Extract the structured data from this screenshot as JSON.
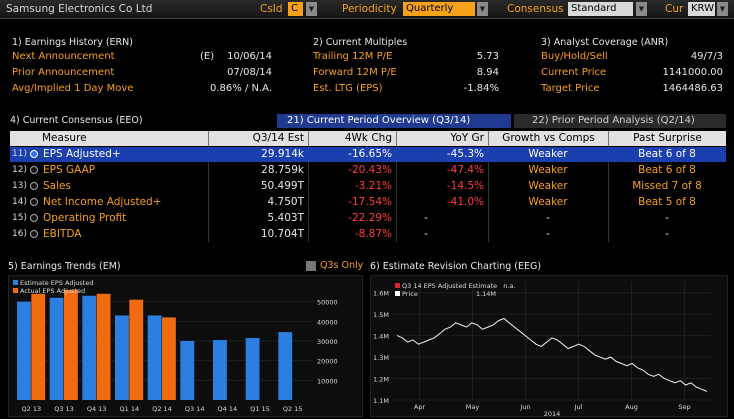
{
  "titlebar": {
    "company": "Samsung Electronics Co Ltd",
    "csid_label": "CsId",
    "csid_value": "C",
    "periodicity_label": "Periodicity",
    "periodicity_value": "Quarterly",
    "consensus_label": "Consensus",
    "consensus_value": "Standard",
    "cur_label": "Cur",
    "cur_value": "KRW"
  },
  "earnings_history": {
    "title": "1) Earnings History (ERN)",
    "rows": [
      {
        "label": "Next Announcement",
        "prefix": "(E)",
        "value": "10/06/14"
      },
      {
        "label": "Prior Announcement",
        "prefix": "",
        "value": "07/08/14"
      },
      {
        "label": "Avg/Implied 1 Day Move",
        "prefix": "",
        "value": "0.86% / N.A."
      }
    ]
  },
  "current_multiples": {
    "title": "2) Current Multiples",
    "rows": [
      {
        "label": "Trailing 12M P/E",
        "value": "5.73"
      },
      {
        "label": "Forward 12M P/E",
        "value": "8.94"
      },
      {
        "label": "Est. LTG (EPS)",
        "value": "-1.84%"
      }
    ]
  },
  "analyst_coverage": {
    "title": "3) Analyst Coverage (ANR)",
    "rows": [
      {
        "label": "Buy/Hold/Sell",
        "value": "49/7/3"
      },
      {
        "label": "Current Price",
        "value": "1141000.00"
      },
      {
        "label": "Target Price",
        "value": "1464486.63"
      }
    ]
  },
  "consensus": {
    "title": "4) Current Consensus (EEO)",
    "tab_active": "21) Current Period Overview (Q3/14)",
    "tab_inactive": "22) Prior Period Analysis (Q2/14)",
    "headers": [
      "Measure",
      "Q3/14 Est",
      "4Wk Chg",
      "YoY Gr",
      "Growth vs Comps",
      "Past Surprise"
    ],
    "rows": [
      {
        "num": "11)",
        "measure": "EPS Adjusted+",
        "est": "29.914k",
        "chg": "-16.65%",
        "yoy": "-45.3%",
        "growth": "Weaker",
        "surprise": "Beat 6 of 8"
      },
      {
        "num": "12)",
        "measure": "EPS GAAP",
        "est": "28.759k",
        "chg": "-20.43%",
        "yoy": "-47.4%",
        "growth": "Weaker",
        "surprise": "Beat 6 of 8"
      },
      {
        "num": "13)",
        "measure": "Sales",
        "est": "50.499T",
        "chg": "-3.21%",
        "yoy": "-14.5%",
        "growth": "Weaker",
        "surprise": "Missed 7 of 8"
      },
      {
        "num": "14)",
        "measure": "Net Income Adjusted+",
        "est": "4.750T",
        "chg": "-17.54%",
        "yoy": "-41.0%",
        "growth": "Weaker",
        "surprise": "Beat 5 of 8"
      },
      {
        "num": "15)",
        "measure": "Operating Profit",
        "est": "5.403T",
        "chg": "-22.29%",
        "yoy": "-",
        "growth": "-",
        "surprise": "-"
      },
      {
        "num": "16)",
        "measure": "EBITDA",
        "est": "10.704T",
        "chg": "-8.87%",
        "yoy": "-",
        "growth": "-",
        "surprise": "-"
      }
    ]
  },
  "trends": {
    "title": "5) Earnings Trends (EM)",
    "q3s_label": "Q3s Only",
    "legend": [
      "Estimate EPS Adjusted",
      "Actual EPS Adjusted"
    ],
    "colors": {
      "estimate": "#2b7fe0",
      "actual": "#f06a10"
    }
  },
  "revision": {
    "title": "6) Estimate Revision Charting (EEG)",
    "legend_est": "Q3 14 EPS Adjusted Estimate",
    "legend_est_val": "n.a.",
    "legend_price": "Price",
    "legend_price_val": "1.14M"
  },
  "chart_data": [
    {
      "type": "bar",
      "categories": [
        "Q2 13",
        "Q3 13",
        "Q4 13",
        "Q1 14",
        "Q2 14",
        "Q3 14",
        "Q4 14",
        "Q1 15",
        "Q2 15"
      ],
      "series": [
        {
          "name": "Estimate EPS Adjusted",
          "values": [
            50000,
            52000,
            53000,
            43000,
            43000,
            30000,
            30500,
            31500,
            34500
          ]
        },
        {
          "name": "Actual EPS Adjusted",
          "values": [
            54000,
            56000,
            54000,
            51000,
            42000,
            null,
            null,
            null,
            null
          ]
        }
      ],
      "y_ticks": [
        "10000",
        "20000",
        "30000",
        "40000",
        "50000"
      ],
      "ylim": [
        0,
        60000
      ]
    },
    {
      "type": "line",
      "x_ticks": [
        "Apr",
        "May",
        "Jun",
        "Jul",
        "Aug",
        "Sep"
      ],
      "x_sublabel": "2014",
      "y_ticks": [
        "1.1M",
        "1.2M",
        "1.3M",
        "1.4M",
        "1.5M",
        "1.6M"
      ],
      "ylim": [
        1.1,
        1.65
      ],
      "series": [
        {
          "name": "Price",
          "values": [
            1.4,
            1.39,
            1.37,
            1.38,
            1.36,
            1.37,
            1.38,
            1.39,
            1.41,
            1.43,
            1.44,
            1.46,
            1.45,
            1.44,
            1.46,
            1.45,
            1.43,
            1.44,
            1.45,
            1.47,
            1.48,
            1.46,
            1.44,
            1.42,
            1.4,
            1.38,
            1.36,
            1.35,
            1.37,
            1.39,
            1.38,
            1.36,
            1.34,
            1.35,
            1.36,
            1.35,
            1.33,
            1.31,
            1.3,
            1.29,
            1.3,
            1.28,
            1.27,
            1.26,
            1.27,
            1.25,
            1.24,
            1.22,
            1.21,
            1.22,
            1.2,
            1.19,
            1.18,
            1.19,
            1.17,
            1.18,
            1.16,
            1.15,
            1.14
          ]
        }
      ]
    }
  ]
}
